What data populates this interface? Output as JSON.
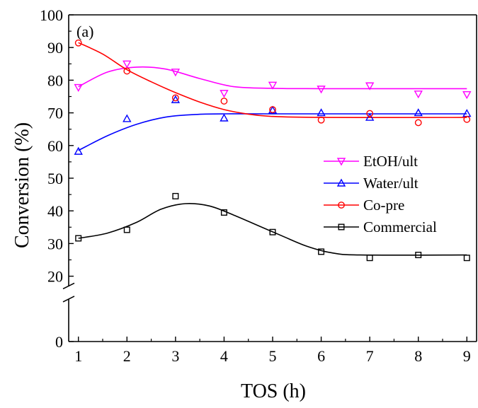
{
  "chart_data": {
    "type": "scatter",
    "panel_label": "(a)",
    "xlabel": "TOS (h)",
    "ylabel": "Conversion (%)",
    "xlim": [
      0.8,
      9.2
    ],
    "ylim": [
      0,
      100
    ],
    "axis_break": {
      "from": 13,
      "to": 17
    },
    "xticks": [
      "1",
      "2",
      "3",
      "4",
      "5",
      "6",
      "7",
      "8",
      "9"
    ],
    "yticks": [
      {
        "value": 0,
        "label": "0"
      },
      {
        "value": 20,
        "label": "20"
      },
      {
        "value": 30,
        "label": "30"
      },
      {
        "value": 40,
        "label": "40"
      },
      {
        "value": 50,
        "label": "50"
      },
      {
        "value": 60,
        "label": "60"
      },
      {
        "value": 70,
        "label": "70"
      },
      {
        "value": 80,
        "label": "80"
      },
      {
        "value": 90,
        "label": "90"
      },
      {
        "value": 100,
        "label": "100"
      }
    ],
    "x": [
      1,
      2,
      3,
      4,
      5,
      6,
      7,
      8,
      9
    ],
    "legend_position": "right",
    "series": [
      {
        "name": "EtOH/ult",
        "color": "#ff00ff",
        "marker": "triangle-down",
        "values": [
          77.8,
          85.0,
          82.5,
          76.0,
          78.5,
          77.3,
          78.3,
          75.8,
          75.6
        ],
        "fit": [
          [
            1,
            78
          ],
          [
            1.6,
            82.5
          ],
          [
            2.2,
            84.0
          ],
          [
            2.8,
            83.4
          ],
          [
            3.5,
            80.5
          ],
          [
            4.2,
            78.0
          ],
          [
            5,
            77.5
          ],
          [
            6,
            77.4
          ],
          [
            9,
            77.4
          ]
        ]
      },
      {
        "name": "Water/ult",
        "color": "#0000ff",
        "marker": "triangle-up",
        "values": [
          58.2,
          68.2,
          74.0,
          68.4,
          70.8,
          70.0,
          68.6,
          70.0,
          69.8
        ],
        "fit": [
          [
            1,
            58.5
          ],
          [
            1.6,
            63
          ],
          [
            2.2,
            66.5
          ],
          [
            2.8,
            68.7
          ],
          [
            3.4,
            69.5
          ],
          [
            4,
            69.7
          ],
          [
            5,
            69.7
          ],
          [
            9,
            69.7
          ]
        ]
      },
      {
        "name": "Co-pre",
        "color": "#ff0000",
        "marker": "circle",
        "values": [
          91.4,
          82.8,
          74.6,
          73.6,
          71.0,
          67.8,
          69.8,
          67.0,
          68.0
        ],
        "fit": [
          [
            1,
            91.5
          ],
          [
            1.5,
            88
          ],
          [
            2,
            83.2
          ],
          [
            2.5,
            79.5
          ],
          [
            3,
            76.2
          ],
          [
            3.5,
            73.3
          ],
          [
            4,
            71.0
          ],
          [
            4.5,
            69.6
          ],
          [
            5,
            68.9
          ],
          [
            6,
            68.6
          ],
          [
            9,
            68.6
          ]
        ]
      },
      {
        "name": "Commercial",
        "color": "#000000",
        "marker": "square",
        "values": [
          31.6,
          34.2,
          44.5,
          39.5,
          33.5,
          27.5,
          25.6,
          26.5,
          25.6
        ],
        "fit": [
          [
            1,
            31.6
          ],
          [
            1.6,
            33.2
          ],
          [
            2.2,
            36.5
          ],
          [
            2.7,
            40.5
          ],
          [
            3.2,
            42.2
          ],
          [
            3.7,
            41.5
          ],
          [
            4.2,
            38.7
          ],
          [
            4.7,
            35.5
          ],
          [
            5.2,
            32.3
          ],
          [
            5.7,
            29.2
          ],
          [
            6.2,
            27.2
          ],
          [
            6.8,
            26.5
          ],
          [
            9,
            26.5
          ]
        ]
      }
    ]
  }
}
